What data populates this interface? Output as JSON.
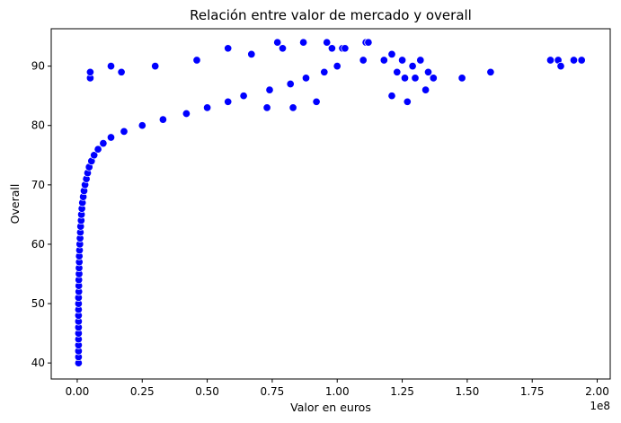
{
  "chart_data": {
    "type": "scatter",
    "title": "Relación entre valor de mercado y overall",
    "xlabel": "Valor en euros",
    "ylabel": "Overall",
    "x_offset_label": "1e8",
    "xlim": [
      -0.1,
      2.05
    ],
    "ylim": [
      37.3,
      96.3
    ],
    "xticks": [
      0.0,
      0.25,
      0.5,
      0.75,
      1.0,
      1.25,
      1.5,
      1.75,
      2.0
    ],
    "xtick_labels": [
      "0.00",
      "0.25",
      "0.50",
      "0.75",
      "1.00",
      "1.25",
      "1.50",
      "1.75",
      "2.00"
    ],
    "yticks": [
      40,
      50,
      60,
      70,
      80,
      90
    ],
    "ytick_labels": [
      "40",
      "50",
      "60",
      "70",
      "80",
      "90"
    ],
    "grid": false,
    "marker_color": "#0000ff",
    "marker_edge_color": "#ffffff",
    "series": [
      {
        "points": [
          [
            0.005,
            40
          ],
          [
            0.005,
            41
          ],
          [
            0.005,
            42
          ],
          [
            0.005,
            43
          ],
          [
            0.005,
            44
          ],
          [
            0.005,
            45
          ],
          [
            0.005,
            46
          ],
          [
            0.005,
            47
          ],
          [
            0.005,
            48
          ],
          [
            0.005,
            49
          ],
          [
            0.005,
            50
          ],
          [
            0.005,
            51
          ],
          [
            0.006,
            52
          ],
          [
            0.006,
            53
          ],
          [
            0.006,
            54
          ],
          [
            0.007,
            55
          ],
          [
            0.007,
            56
          ],
          [
            0.008,
            57
          ],
          [
            0.008,
            58
          ],
          [
            0.009,
            59
          ],
          [
            0.01,
            60
          ],
          [
            0.011,
            61
          ],
          [
            0.012,
            62
          ],
          [
            0.013,
            63
          ],
          [
            0.015,
            64
          ],
          [
            0.016,
            65
          ],
          [
            0.018,
            66
          ],
          [
            0.02,
            67
          ],
          [
            0.023,
            68
          ],
          [
            0.026,
            69
          ],
          [
            0.03,
            70
          ],
          [
            0.035,
            71
          ],
          [
            0.04,
            72
          ],
          [
            0.046,
            73
          ],
          [
            0.055,
            74
          ],
          [
            0.065,
            75
          ],
          [
            0.08,
            76
          ],
          [
            0.1,
            77
          ],
          [
            0.13,
            78
          ],
          [
            0.18,
            79
          ],
          [
            0.25,
            80
          ],
          [
            0.33,
            81
          ],
          [
            0.42,
            82
          ],
          [
            0.5,
            83
          ],
          [
            0.58,
            84
          ],
          [
            0.64,
            85
          ],
          [
            0.74,
            86
          ],
          [
            0.82,
            87
          ],
          [
            0.88,
            88
          ],
          [
            0.95,
            89
          ],
          [
            1.0,
            90
          ],
          [
            1.1,
            91
          ],
          [
            1.21,
            92
          ],
          [
            1.02,
            93
          ],
          [
            1.11,
            94
          ],
          [
            0.05,
            88
          ],
          [
            0.05,
            89
          ],
          [
            0.13,
            90
          ],
          [
            0.17,
            89
          ],
          [
            0.3,
            90
          ],
          [
            0.46,
            91
          ],
          [
            0.58,
            93
          ],
          [
            0.67,
            92
          ],
          [
            0.77,
            94
          ],
          [
            0.79,
            93
          ],
          [
            0.87,
            94
          ],
          [
            0.96,
            94
          ],
          [
            1.03,
            93
          ],
          [
            1.12,
            94
          ],
          [
            0.98,
            93
          ],
          [
            1.18,
            91
          ],
          [
            1.25,
            91
          ],
          [
            1.29,
            90
          ],
          [
            1.32,
            91
          ],
          [
            1.23,
            89
          ],
          [
            1.35,
            89
          ],
          [
            1.26,
            88
          ],
          [
            1.3,
            88
          ],
          [
            1.37,
            88
          ],
          [
            1.48,
            88
          ],
          [
            1.59,
            89
          ],
          [
            1.34,
            86
          ],
          [
            1.21,
            85
          ],
          [
            1.27,
            84
          ],
          [
            0.83,
            83
          ],
          [
            0.92,
            84
          ],
          [
            0.73,
            83
          ],
          [
            1.82,
            91
          ],
          [
            1.85,
            91
          ],
          [
            1.86,
            90
          ],
          [
            1.91,
            91
          ],
          [
            1.94,
            91
          ]
        ]
      }
    ]
  }
}
